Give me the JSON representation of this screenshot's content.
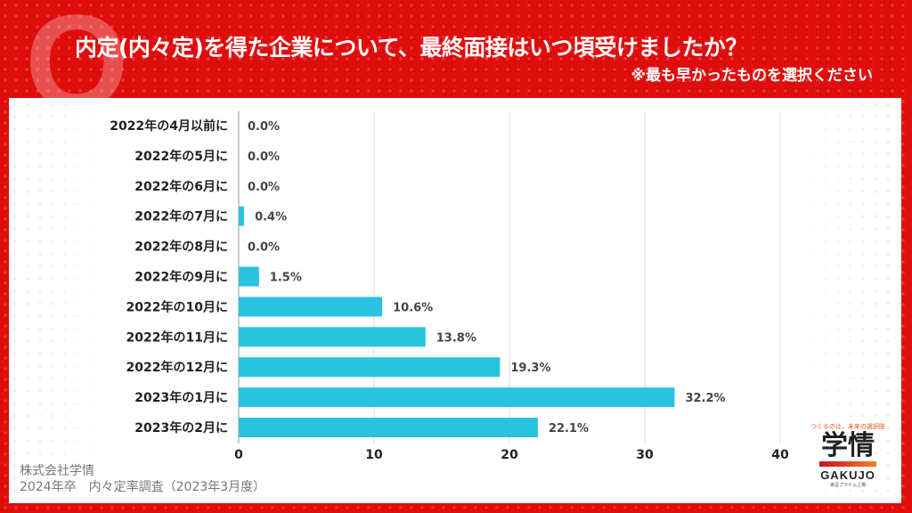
{
  "header": {
    "q_mark": "Q",
    "title": "内定(内々定)を得た企業について、最終面接はいつ頃受けましたか？",
    "subtitle": "※最も早かったものを選択ください"
  },
  "footer": {
    "company": "株式会社学情",
    "survey": "2024年卒　内々定率調査（2023年3月度）"
  },
  "logo": {
    "tagline": "つくるのは、未来の選択肢",
    "kanji": "学情",
    "english": "GAKUJO",
    "listing": "東証プライム上場"
  },
  "colors": {
    "background": "#e00d0d",
    "bar": "#29c3e0",
    "grid": "#dddddd"
  },
  "chart_data": {
    "type": "bar",
    "orientation": "horizontal",
    "categories": [
      "2022年の4月以前に",
      "2022年の5月に",
      "2022年の6月に",
      "2022年の7月に",
      "2022年の8月に",
      "2022年の9月に",
      "2022年の10月に",
      "2022年の11月に",
      "2022年の12月に",
      "2023年の1月に",
      "2023年の2月に"
    ],
    "values": [
      0.0,
      0.0,
      0.0,
      0.4,
      0.0,
      1.5,
      10.6,
      13.8,
      19.3,
      32.2,
      22.1
    ],
    "data_labels": [
      "0.0%",
      "0.0%",
      "0.0%",
      "0.4%",
      "0.0%",
      "1.5%",
      "10.6%",
      "13.8%",
      "19.3%",
      "32.2%",
      "22.1%"
    ],
    "xlim": [
      0,
      40
    ],
    "xticks": [
      "0",
      "10",
      "20",
      "30",
      "40"
    ],
    "grid": true
  }
}
